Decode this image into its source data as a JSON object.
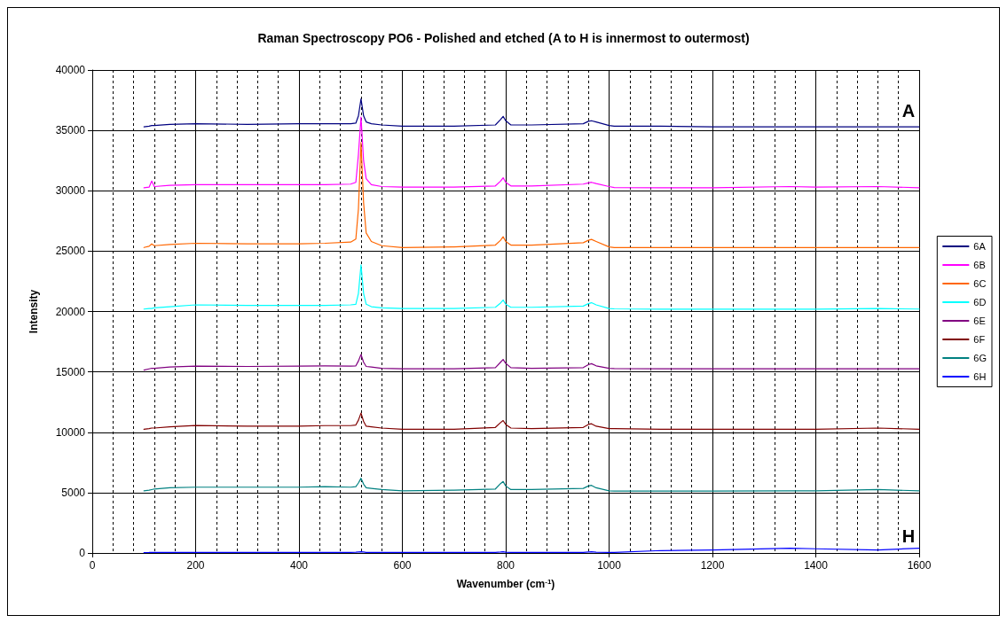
{
  "chart_data": {
    "type": "line",
    "title": "Raman Spectroscopy PO6 - Polished and etched (A to H is innermost to outermost)",
    "xlabel": "Wavenumber (cm$^{-1}$)",
    "ylabel": "Intensity",
    "x": [
      100,
      110,
      115,
      120,
      150,
      200,
      300,
      400,
      450,
      500,
      510,
      515,
      520,
      525,
      530,
      540,
      560,
      600,
      700,
      780,
      790,
      795,
      800,
      810,
      850,
      950,
      960,
      966,
      975,
      1000,
      1010,
      1100,
      1200,
      1350,
      1400,
      1520,
      1600
    ],
    "series": [
      {
        "name": "6A",
        "color": "#000080",
        "values": [
          35300,
          35350,
          35400,
          35400,
          35500,
          35550,
          35500,
          35550,
          35550,
          35550,
          35600,
          36200,
          37600,
          36200,
          35700,
          35550,
          35450,
          35350,
          35350,
          35450,
          35900,
          36160,
          35800,
          35450,
          35450,
          35550,
          35750,
          35800,
          35700,
          35400,
          35350,
          35350,
          35300,
          35300,
          35300,
          35300,
          35300
        ]
      },
      {
        "name": "6B",
        "color": "#ff00ff",
        "values": [
          30250,
          30300,
          30800,
          30350,
          30450,
          30500,
          30500,
          30500,
          30500,
          30550,
          30700,
          33000,
          36100,
          32500,
          31000,
          30500,
          30350,
          30300,
          30300,
          30400,
          30800,
          31080,
          30700,
          30400,
          30400,
          30550,
          30650,
          30700,
          30600,
          30350,
          30270,
          30250,
          30250,
          30350,
          30300,
          30350,
          30250
        ]
      },
      {
        "name": "6C",
        "color": "#ff6600",
        "values": [
          25300,
          25400,
          25600,
          25450,
          25550,
          25650,
          25600,
          25600,
          25650,
          25750,
          26000,
          28500,
          34000,
          29000,
          26500,
          25800,
          25450,
          25300,
          25350,
          25500,
          25900,
          26190,
          25800,
          25500,
          25500,
          25700,
          25900,
          25970,
          25800,
          25350,
          25300,
          25300,
          25300,
          25300,
          25300,
          25300,
          25300
        ]
      },
      {
        "name": "6D",
        "color": "#00ffff",
        "values": [
          20200,
          20250,
          20250,
          20300,
          20400,
          20550,
          20500,
          20500,
          20500,
          20550,
          20600,
          21500,
          23860,
          21500,
          20600,
          20400,
          20300,
          20250,
          20250,
          20350,
          20700,
          20950,
          20600,
          20350,
          20350,
          20450,
          20650,
          20730,
          20550,
          20250,
          20220,
          20200,
          20200,
          20200,
          20200,
          20250,
          20200
        ]
      },
      {
        "name": "6E",
        "color": "#800080",
        "values": [
          15150,
          15250,
          15300,
          15300,
          15400,
          15480,
          15450,
          15480,
          15500,
          15480,
          15500,
          15900,
          16440,
          15800,
          15450,
          15400,
          15300,
          15250,
          15250,
          15350,
          15800,
          16030,
          15700,
          15350,
          15300,
          15350,
          15600,
          15680,
          15500,
          15300,
          15270,
          15250,
          15250,
          15250,
          15250,
          15250,
          15250
        ]
      },
      {
        "name": "6F",
        "color": "#800000",
        "values": [
          10250,
          10300,
          10350,
          10350,
          10450,
          10560,
          10500,
          10500,
          10550,
          10550,
          10600,
          11000,
          11590,
          10900,
          10500,
          10450,
          10350,
          10250,
          10250,
          10400,
          10800,
          10970,
          10650,
          10350,
          10300,
          10400,
          10650,
          10700,
          10500,
          10300,
          10300,
          10250,
          10250,
          10250,
          10250,
          10350,
          10250
        ]
      },
      {
        "name": "6G",
        "color": "#008080",
        "values": [
          5150,
          5200,
          5250,
          5300,
          5400,
          5450,
          5450,
          5450,
          5500,
          5450,
          5500,
          5800,
          6190,
          5700,
          5400,
          5350,
          5250,
          5150,
          5200,
          5300,
          5750,
          5920,
          5550,
          5250,
          5250,
          5350,
          5550,
          5600,
          5400,
          5150,
          5130,
          5130,
          5130,
          5150,
          5150,
          5250,
          5150
        ]
      },
      {
        "name": "6H",
        "color": "#0000ff",
        "values": [
          30,
          40,
          50,
          50,
          50,
          50,
          50,
          50,
          50,
          50,
          60,
          80,
          100,
          80,
          50,
          50,
          50,
          50,
          50,
          50,
          80,
          100,
          60,
          50,
          50,
          50,
          80,
          100,
          60,
          50,
          50,
          200,
          250,
          400,
          350,
          250,
          400
        ]
      }
    ],
    "xlim": [
      0,
      1600
    ],
    "xticks": [
      0,
      200,
      400,
      600,
      800,
      1000,
      1200,
      1400,
      1600
    ],
    "ylim": [
      0,
      40000
    ],
    "yticks": [
      0,
      5000,
      10000,
      15000,
      20000,
      25000,
      30000,
      35000,
      40000
    ],
    "grid": true,
    "legend": "right",
    "marker": "none",
    "line_style": "solid",
    "annotations": [
      "A",
      "H"
    ]
  }
}
